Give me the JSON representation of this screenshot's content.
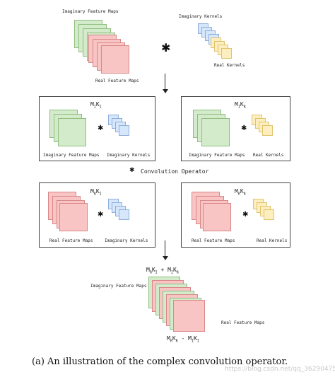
{
  "top": {
    "imaginary_maps_label": "Imaginary Feature Maps",
    "real_maps_label": "Real Feature Maps",
    "imaginary_kernels_label": "Imaginary Kernels",
    "real_kernels_label": "Real Kernels",
    "operator_symbol": "✱"
  },
  "panels": {
    "top_left": {
      "formula": "MIKI",
      "maps_label": "Imaginary Feature Maps",
      "kernels_label": "Imaginary Kernels"
    },
    "top_right": {
      "formula": "MIKR",
      "maps_label": "Imaginary Feature Maps",
      "kernels_label": "Real Kernels"
    },
    "bottom_left": {
      "formula": "MRKI",
      "maps_label": "Real Feature Maps",
      "kernels_label": "Imaginary Kernels"
    },
    "bottom_right": {
      "formula": "MRKR",
      "maps_label": "Real Feature Maps",
      "kernels_label": "Real Kernels"
    }
  },
  "legend": {
    "symbol": "✱",
    "text": "Convolution Operator"
  },
  "result": {
    "formula_top": "MRKI + MIKR",
    "imaginary_label": "Imaginary Feature Maps",
    "real_label": "Real Feature Maps",
    "formula_bottom": "MRKR - MIKI"
  },
  "caption": "(a) An illustration of the complex convolution operator.",
  "watermark": "https://blog.csdn.net/qq_36290475",
  "colors": {
    "green_fill": "#d3eacb",
    "red_fill": "#f8c4c4",
    "blue_fill": "#d6e6fb",
    "yellow_fill": "#fdeec0"
  }
}
